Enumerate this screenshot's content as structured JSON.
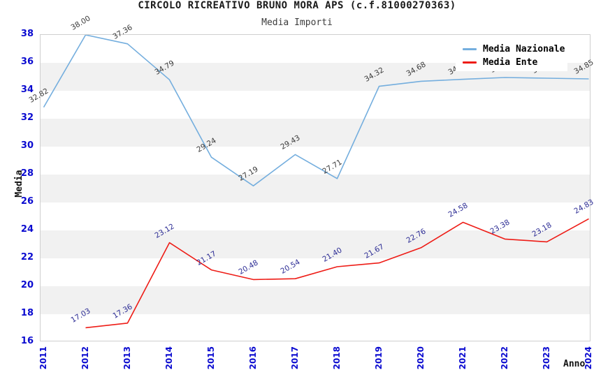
{
  "title": "CIRCOLO RICREATIVO BRUNO MORA APS (c.f.81000270363)",
  "subtitle": "Media Importi",
  "axes": {
    "y_title": "Media",
    "x_title": "Anno",
    "y_ticks": [
      38,
      36,
      34,
      32,
      30,
      28,
      26,
      24,
      22,
      20,
      18,
      16
    ],
    "x_ticks": [
      "2011",
      "2012",
      "2013",
      "2014",
      "2015",
      "2016",
      "2017",
      "2018",
      "2019",
      "2020",
      "2021",
      "2022",
      "2023",
      "2024"
    ]
  },
  "legend": {
    "items": [
      {
        "label": "Media Nazionale",
        "color": "#74aede"
      },
      {
        "label": "Media Ente",
        "color": "#ee1c16"
      }
    ]
  },
  "colors": {
    "tick_blue": "#0b0bd0",
    "band_gray": "#f1f1f1",
    "national_line": "#74aede",
    "ente_line": "#ee1c16",
    "national_label": "#3a3a3a",
    "ente_label": "#2b2b94"
  },
  "chart_data": {
    "type": "line",
    "title": "CIRCOLO RICREATIVO BRUNO MORA APS (c.f.81000270363)",
    "subtitle": "Media Importi",
    "xlabel": "Anno",
    "ylabel": "Media",
    "ylim": [
      16,
      38
    ],
    "grid": "horizontal alternating bands",
    "legend_position": "top-right overlapping plot",
    "categories": [
      "2011",
      "2012",
      "2013",
      "2014",
      "2015",
      "2016",
      "2017",
      "2018",
      "2019",
      "2020",
      "2021",
      "2022",
      "2023",
      "2024"
    ],
    "series": [
      {
        "name": "Media Nazionale",
        "color": "#74aede",
        "label_color": "#3a3a3a",
        "values": [
          32.82,
          38.0,
          37.36,
          34.79,
          29.24,
          27.19,
          29.43,
          27.71,
          34.32,
          34.68,
          34.82,
          34.95,
          34.9,
          34.85
        ],
        "labels": [
          "32.82",
          "38.00",
          "37.36",
          "34.79",
          "29.24",
          "27.19",
          "29.43",
          "27.71",
          "34.32",
          "34.68",
          "34.82",
          "34.95",
          "34.90",
          "34.85"
        ]
      },
      {
        "name": "Media Ente",
        "color": "#ee1c16",
        "label_color": "#2b2b94",
        "values": [
          null,
          17.03,
          17.36,
          23.12,
          21.17,
          20.48,
          20.54,
          21.4,
          21.67,
          22.76,
          24.58,
          23.38,
          23.18,
          24.83
        ],
        "labels": [
          null,
          "17.03",
          "17.36",
          "23.12",
          "21.17",
          "20.48",
          "20.54",
          "21.40",
          "21.67",
          "22.76",
          "24.58",
          "23.38",
          "23.18",
          "24.83"
        ]
      }
    ]
  }
}
